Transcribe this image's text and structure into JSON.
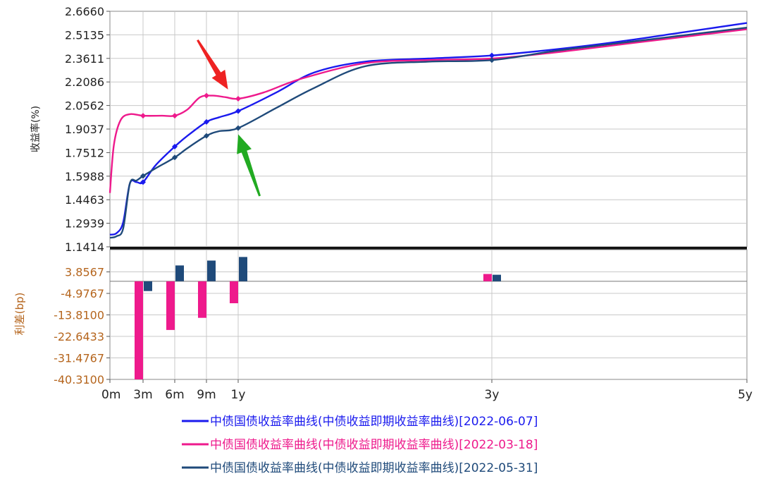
{
  "chart_data": {
    "type": "line",
    "colors": {
      "series_0607": "#1a1aee",
      "series_0318": "#ee1a8c",
      "series_0531": "#1f4a7a",
      "top_ytick": "#222222",
      "bottom_ytick": "#b5651d",
      "arrow_red": "#ee2222",
      "arrow_green": "#22aa22"
    },
    "x_axis": {
      "ticks": [
        {
          "value": 0,
          "label": "0m"
        },
        {
          "value": 0.25,
          "label": "3m"
        },
        {
          "value": 0.5,
          "label": "6m"
        },
        {
          "value": 0.75,
          "label": "9m"
        },
        {
          "value": 1,
          "label": "1y"
        },
        {
          "value": 3,
          "label": "3y"
        },
        {
          "value": 5,
          "label": "5y"
        }
      ],
      "range": [
        0,
        5
      ]
    },
    "top_panel": {
      "ylabel": "收益率(%)",
      "ylim": [
        1.1414,
        2.666
      ],
      "yticks": [
        "2.6660",
        "2.5135",
        "2.3611",
        "2.2086",
        "2.0562",
        "1.9037",
        "1.7512",
        "1.5988",
        "1.4463",
        "1.2939",
        "1.1414"
      ],
      "series": [
        {
          "name": "中债国债收益率曲线(中债收益即期收益率曲线)[2022-06-07]",
          "color": "#1a1aee",
          "points": [
            [
              0,
              1.22
            ],
            [
              0.05,
              1.23
            ],
            [
              0.1,
              1.3
            ],
            [
              0.15,
              1.55
            ],
            [
              0.2,
              1.56
            ],
            [
              0.25,
              1.56
            ],
            [
              0.35,
              1.67
            ],
            [
              0.5,
              1.79
            ],
            [
              0.6,
              1.86
            ],
            [
              0.75,
              1.95
            ],
            [
              0.85,
              1.98
            ],
            [
              1,
              2.02
            ],
            [
              1.3,
              2.14
            ],
            [
              1.6,
              2.27
            ],
            [
              2,
              2.34
            ],
            [
              2.5,
              2.36
            ],
            [
              3,
              2.38
            ],
            [
              3.5,
              2.42
            ],
            [
              4,
              2.47
            ],
            [
              4.5,
              2.53
            ],
            [
              5,
              2.59
            ]
          ],
          "markers": [
            [
              0.25,
              1.56
            ],
            [
              0.5,
              1.79
            ],
            [
              0.75,
              1.95
            ],
            [
              1,
              2.02
            ],
            [
              3,
              2.38
            ]
          ]
        },
        {
          "name": "中债国债收益率曲线(中债收益即期收益率曲线)[2022-03-18]",
          "color": "#ee1a8c",
          "points": [
            [
              0,
              1.49
            ],
            [
              0.03,
              1.8
            ],
            [
              0.08,
              1.96
            ],
            [
              0.15,
              2.0
            ],
            [
              0.25,
              1.99
            ],
            [
              0.4,
              1.99
            ],
            [
              0.5,
              1.99
            ],
            [
              0.6,
              2.03
            ],
            [
              0.7,
              2.11
            ],
            [
              0.8,
              2.12
            ],
            [
              0.9,
              2.11
            ],
            [
              1,
              2.1
            ],
            [
              1.2,
              2.14
            ],
            [
              1.5,
              2.23
            ],
            [
              2,
              2.33
            ],
            [
              2.5,
              2.35
            ],
            [
              3,
              2.36
            ],
            [
              3.5,
              2.4
            ],
            [
              4,
              2.45
            ],
            [
              4.5,
              2.5
            ],
            [
              5,
              2.55
            ]
          ],
          "markers": [
            [
              0.25,
              1.99
            ],
            [
              0.5,
              1.99
            ],
            [
              0.75,
              2.12
            ],
            [
              1,
              2.1
            ]
          ]
        },
        {
          "name": "中债国债收益率曲线(中债收益即期收益率曲线)[2022-05-31]",
          "color": "#1f4a7a",
          "points": [
            [
              0,
              1.2
            ],
            [
              0.05,
              1.21
            ],
            [
              0.1,
              1.26
            ],
            [
              0.15,
              1.55
            ],
            [
              0.2,
              1.57
            ],
            [
              0.25,
              1.6
            ],
            [
              0.35,
              1.65
            ],
            [
              0.5,
              1.72
            ],
            [
              0.6,
              1.78
            ],
            [
              0.75,
              1.86
            ],
            [
              0.85,
              1.89
            ],
            [
              1,
              1.91
            ],
            [
              1.3,
              2.04
            ],
            [
              1.6,
              2.17
            ],
            [
              2,
              2.31
            ],
            [
              2.5,
              2.34
            ],
            [
              3,
              2.35
            ],
            [
              3.5,
              2.41
            ],
            [
              4,
              2.46
            ],
            [
              4.5,
              2.51
            ],
            [
              5,
              2.56
            ]
          ],
          "markers": [
            [
              0.25,
              1.6
            ],
            [
              0.5,
              1.72
            ],
            [
              0.75,
              1.86
            ],
            [
              1,
              1.91
            ],
            [
              3,
              2.35
            ]
          ]
        }
      ],
      "annotations": [
        {
          "type": "arrow",
          "color": "red",
          "from": [
            0.68,
            2.48
          ],
          "to": [
            0.92,
            2.16
          ]
        },
        {
          "type": "arrow",
          "color": "green",
          "from": [
            1.17,
            1.47
          ],
          "to": [
            1.0,
            1.87
          ]
        }
      ]
    },
    "bottom_panel": {
      "ylabel": "利差(bp)",
      "ylim": [
        -40.31,
        13.0
      ],
      "yticks": [
        "3.8567",
        "-4.9767",
        "-13.8100",
        "-22.6433",
        "-31.4767",
        "-40.3100"
      ],
      "baseline": 0,
      "bars": [
        {
          "x": 0.25,
          "value": -40.31,
          "series": "2022-03-18"
        },
        {
          "x": 0.25,
          "value": -4.0,
          "series": "2022-05-31"
        },
        {
          "x": 0.5,
          "value": -20.0,
          "series": "2022-03-18"
        },
        {
          "x": 0.5,
          "value": 6.5,
          "series": "2022-05-31"
        },
        {
          "x": 0.75,
          "value": -15.0,
          "series": "2022-03-18"
        },
        {
          "x": 0.75,
          "value": 8.5,
          "series": "2022-05-31"
        },
        {
          "x": 1,
          "value": -9.0,
          "series": "2022-03-18"
        },
        {
          "x": 1,
          "value": 10.0,
          "series": "2022-05-31"
        },
        {
          "x": 3,
          "value": 3.0,
          "series": "2022-03-18"
        },
        {
          "x": 3,
          "value": 2.7,
          "series": "2022-05-31"
        }
      ]
    },
    "legend": {
      "placement": "bottom-center",
      "entries": [
        {
          "label": "中债国债收益率曲线(中债收益即期收益率曲线)[2022-06-07]",
          "color": "#1a1aee"
        },
        {
          "label": "中债国债收益率曲线(中债收益即期收益率曲线)[2022-03-18]",
          "color": "#ee1a8c"
        },
        {
          "label": "中债国债收益率曲线(中债收益即期收益率曲线)[2022-05-31]",
          "color": "#1f4a7a"
        }
      ]
    }
  }
}
